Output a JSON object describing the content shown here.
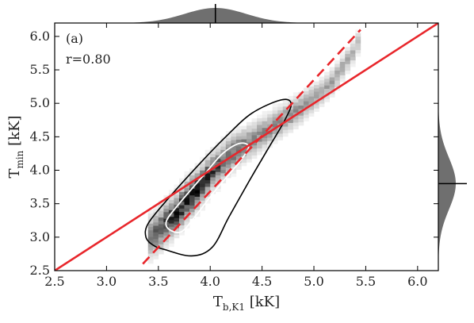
{
  "chart_data": {
    "type": "heatmap",
    "panel_label": "(a)",
    "correlation_text": "r=0.80",
    "xlabel": {
      "main": "T",
      "sub": "b,K1",
      "unit": " [kK]"
    },
    "ylabel": {
      "main": "T",
      "sub": "min",
      "unit": " [kK]"
    },
    "xlim": [
      2.5,
      6.2
    ],
    "ylim": [
      2.5,
      6.2
    ],
    "xticks": [
      "2.5",
      "3.0",
      "3.5",
      "4.0",
      "4.5",
      "5.0",
      "5.5",
      "6.0"
    ],
    "yticks": [
      "2.5",
      "3.0",
      "3.5",
      "4.0",
      "4.5",
      "5.0",
      "5.5",
      "6.0"
    ],
    "grid": false,
    "density_ridge": [
      {
        "x": 3.42,
        "y": 3.0,
        "density": 0.55
      },
      {
        "x": 3.5,
        "y": 3.1,
        "density": 0.7
      },
      {
        "x": 3.6,
        "y": 3.25,
        "density": 0.85
      },
      {
        "x": 3.7,
        "y": 3.4,
        "density": 0.95
      },
      {
        "x": 3.8,
        "y": 3.6,
        "density": 1.0
      },
      {
        "x": 3.9,
        "y": 3.75,
        "density": 0.95
      },
      {
        "x": 4.0,
        "y": 3.95,
        "density": 0.85
      },
      {
        "x": 4.1,
        "y": 4.1,
        "density": 0.75
      },
      {
        "x": 4.2,
        "y": 4.25,
        "density": 0.65
      },
      {
        "x": 4.35,
        "y": 4.4,
        "density": 0.55
      },
      {
        "x": 4.5,
        "y": 4.55,
        "density": 0.5
      },
      {
        "x": 4.7,
        "y": 4.75,
        "density": 0.5
      },
      {
        "x": 4.9,
        "y": 4.95,
        "density": 0.45
      },
      {
        "x": 5.05,
        "y": 5.15,
        "density": 0.4
      },
      {
        "x": 5.2,
        "y": 5.35,
        "density": 0.4
      },
      {
        "x": 5.3,
        "y": 5.6,
        "density": 0.35
      },
      {
        "x": 5.4,
        "y": 5.8,
        "density": 0.3
      },
      {
        "x": 5.45,
        "y": 6.0,
        "density": 0.3
      }
    ],
    "outer_contour": [
      [
        3.55,
        2.82
      ],
      [
        3.82,
        2.72
      ],
      [
        4.02,
        2.85
      ],
      [
        4.18,
        3.3
      ],
      [
        4.38,
        3.85
      ],
      [
        4.55,
        4.3
      ],
      [
        4.72,
        4.75
      ],
      [
        4.78,
        5.0
      ],
      [
        4.68,
        5.05
      ],
      [
        4.4,
        4.85
      ],
      [
        4.15,
        4.5
      ],
      [
        3.9,
        4.1
      ],
      [
        3.58,
        3.55
      ],
      [
        3.4,
        3.2
      ],
      [
        3.38,
        3.0
      ],
      [
        3.45,
        2.88
      ]
    ],
    "inner_contour": [
      [
        3.6,
        3.12
      ],
      [
        3.72,
        3.08
      ],
      [
        3.85,
        3.3
      ],
      [
        4.05,
        3.7
      ],
      [
        4.28,
        4.12
      ],
      [
        4.37,
        4.35
      ],
      [
        4.28,
        4.4
      ],
      [
        4.12,
        4.25
      ],
      [
        3.95,
        3.95
      ],
      [
        3.7,
        3.5
      ],
      [
        3.58,
        3.25
      ]
    ],
    "lines": [
      {
        "style": "solid",
        "color": "#e8262b",
        "x": [
          2.5,
          6.2
        ],
        "y": [
          2.5,
          6.2
        ]
      },
      {
        "style": "dashed",
        "color": "#e8262b",
        "x": [
          3.35,
          5.45
        ],
        "y": [
          2.6,
          6.1
        ]
      }
    ],
    "marginal_x_peak": 4.05,
    "marginal_y_peak": 3.8,
    "colors": {
      "density": "#000000",
      "fit_line": "#e8262b",
      "outer_contour": "#000000",
      "inner_contour": "#ffffff",
      "marginal": "#6f6f6f"
    }
  }
}
